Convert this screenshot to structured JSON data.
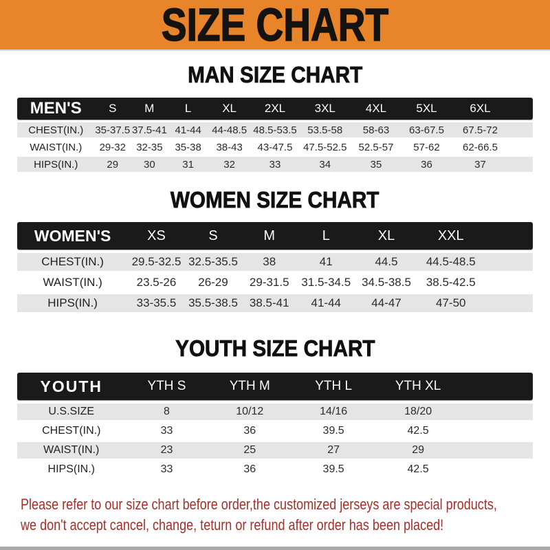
{
  "banner": {
    "title": "SIZE CHART"
  },
  "colors": {
    "banner_bg": "#E8852B",
    "bar_bg": "#1A1A1A",
    "row_stripe": "#E5E5E5",
    "notice_text": "#A5302A"
  },
  "sections": [
    {
      "heading": "MAN SIZE CHART",
      "table": {
        "corner_label": "MEN'S",
        "columns": [
          "S",
          "M",
          "L",
          "XL",
          "2XL",
          "3XL",
          "4XL",
          "5XL",
          "6XL"
        ],
        "rows": [
          {
            "label": "CHEST(IN.)",
            "values": [
              "35-37.5",
              "37.5-41",
              "41-44",
              "44-48.5",
              "48.5-53.5",
              "53.5-58",
              "58-63",
              "63-67.5",
              "67.5-72"
            ]
          },
          {
            "label": "WAIST(IN.)",
            "values": [
              "29-32",
              "32-35",
              "35-38",
              "38-43",
              "43-47.5",
              "47.5-52.5",
              "52.5-57",
              "57-62",
              "62-66.5"
            ]
          },
          {
            "label": "HIPS(IN.)",
            "values": [
              "29",
              "30",
              "31",
              "32",
              "33",
              "34",
              "35",
              "36",
              "37"
            ]
          }
        ]
      }
    },
    {
      "heading": "WOMEN SIZE CHART",
      "table": {
        "corner_label": "WOMEN'S",
        "columns": [
          "XS",
          "S",
          "M",
          "L",
          "XL",
          "XXL"
        ],
        "rows": [
          {
            "label": "CHEST(IN.)",
            "values": [
              "29.5-32.5",
              "32.5-35.5",
              "38",
              "41",
              "44.5",
              "44.5-48.5"
            ]
          },
          {
            "label": "WAIST(IN.)",
            "values": [
              "23.5-26",
              "26-29",
              "29-31.5",
              "31.5-34.5",
              "34.5-38.5",
              "38.5-42.5"
            ]
          },
          {
            "label": "HIPS(IN.)",
            "values": [
              "33-35.5",
              "35.5-38.5",
              "38.5-41",
              "41-44",
              "44-47",
              "47-50"
            ]
          }
        ]
      }
    },
    {
      "heading": "YOUTH SIZE CHART",
      "table": {
        "corner_label": "YOUTH",
        "columns": [
          "YTH S",
          "YTH M",
          "YTH L",
          "YTH XL"
        ],
        "rows": [
          {
            "label": "U.S.SIZE",
            "values": [
              "8",
              "10/12",
              "14/16",
              "18/20"
            ]
          },
          {
            "label": "CHEST(IN.)",
            "values": [
              "33",
              "36",
              "39.5",
              "42.5"
            ]
          },
          {
            "label": "WAIST(IN.)",
            "values": [
              "23",
              "25",
              "27",
              "29"
            ]
          },
          {
            "label": "HIPS(IN.)",
            "values": [
              "33",
              "36",
              "39.5",
              "42.5"
            ]
          }
        ]
      }
    }
  ],
  "notice": {
    "line1": "Please refer to our size chart before order,the customized jerseys are special products,",
    "line2": "we don't accept cancel, change, teturn or refund after order has been placed!"
  }
}
